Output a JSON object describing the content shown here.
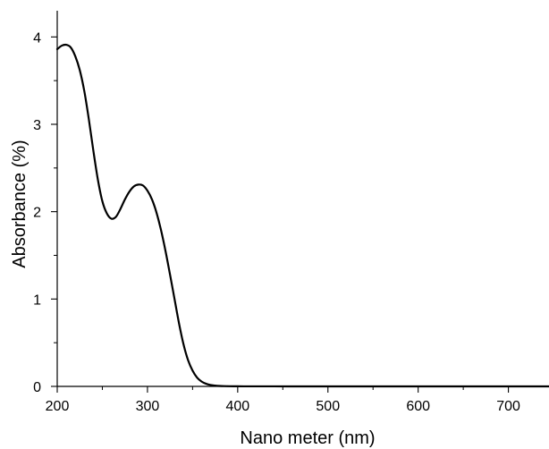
{
  "chart_data": {
    "type": "line",
    "title": "",
    "xlabel": "Nano meter (nm)",
    "ylabel": "Absorbance (%)",
    "xlim": [
      200,
      745
    ],
    "ylim": [
      0,
      4.3
    ],
    "grid": false,
    "legend": "none",
    "x_ticks": [
      200,
      300,
      400,
      500,
      600,
      700
    ],
    "y_ticks": [
      0,
      1,
      2,
      3,
      4
    ],
    "x_tick_labels": [
      "200",
      "300",
      "400",
      "500",
      "600",
      "700"
    ],
    "y_tick_labels": [
      "0",
      "1",
      "2",
      "3",
      "4"
    ],
    "line_color": "#000000",
    "series": [
      {
        "x": [
          200,
          205,
          210,
          215,
          220,
          225,
          230,
          235,
          240,
          245,
          250,
          255,
          260,
          265,
          270,
          275,
          280,
          285,
          290,
          295,
          300,
          305,
          310,
          315,
          320,
          325,
          330,
          335,
          340,
          345,
          350,
          355,
          360,
          365,
          370,
          375,
          380,
          385,
          390,
          395,
          400,
          410,
          420,
          440,
          460,
          480,
          500,
          550,
          600,
          650,
          700,
          745
        ],
        "y": [
          3.86,
          3.9,
          3.91,
          3.88,
          3.78,
          3.62,
          3.38,
          3.06,
          2.7,
          2.37,
          2.12,
          1.98,
          1.92,
          1.94,
          2.03,
          2.14,
          2.23,
          2.29,
          2.31,
          2.3,
          2.24,
          2.14,
          1.99,
          1.79,
          1.55,
          1.28,
          1.0,
          0.72,
          0.48,
          0.3,
          0.18,
          0.1,
          0.055,
          0.03,
          0.016,
          0.009,
          0.005,
          0.003,
          0.002,
          0.0015,
          0.001,
          0.0008,
          0.0006,
          0.0004,
          0.0003,
          0.0002,
          0.0001,
          0,
          0,
          0,
          0,
          0
        ]
      }
    ]
  }
}
